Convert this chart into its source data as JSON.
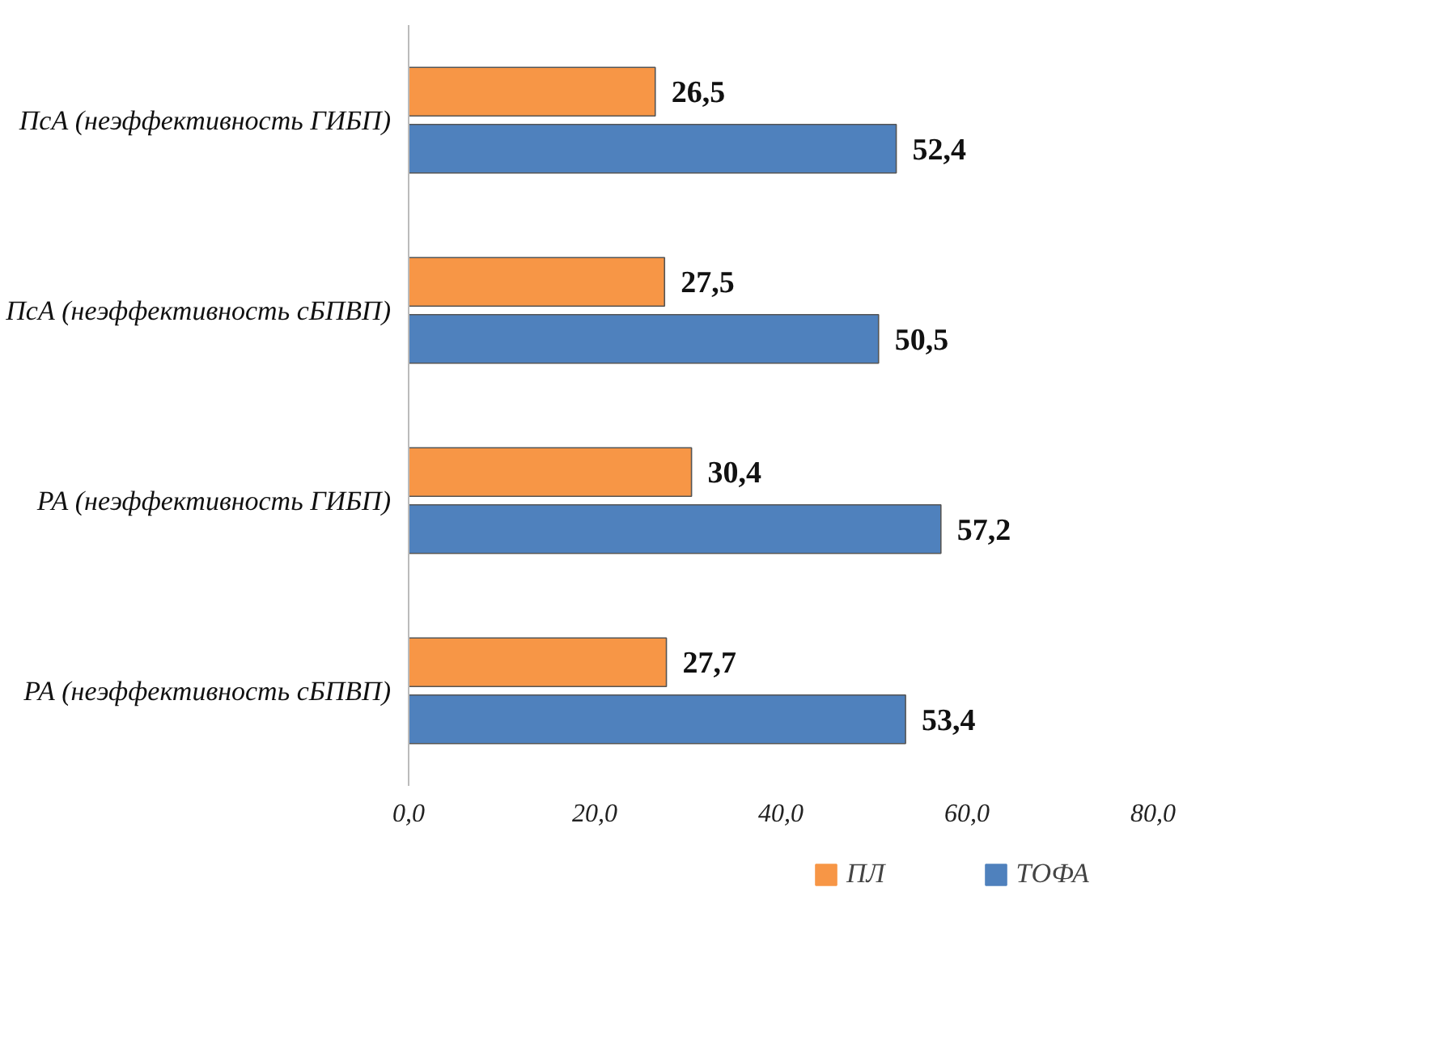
{
  "chart_data": {
    "type": "bar",
    "orientation": "horizontal",
    "categories": [
      "ПсА (неэффективность ГИБП)",
      "ПсА (неэффективность сБПВП)",
      "РА (неэффективность ГИБП)",
      "РА (неэффективность сБПВП)"
    ],
    "series": [
      {
        "name": "ПЛ",
        "color": "#f79646",
        "values": [
          26.5,
          27.5,
          30.4,
          27.7
        ],
        "value_labels": [
          "26,5",
          "27,5",
          "30,4",
          "27,7"
        ]
      },
      {
        "name": "ТОФА",
        "color": "#4f81bd",
        "values": [
          52.4,
          50.5,
          57.2,
          53.4
        ],
        "value_labels": [
          "52,4",
          "50,5",
          "57,2",
          "53,4"
        ]
      }
    ],
    "xlim": [
      0,
      80
    ],
    "xticks": [
      {
        "value": 0,
        "label": "0,0"
      },
      {
        "value": 20,
        "label": "20,0"
      },
      {
        "value": 40,
        "label": "40,0"
      },
      {
        "value": 60,
        "label": "60,0"
      },
      {
        "value": 80,
        "label": "80,0"
      }
    ],
    "grid": false,
    "legend": "bottom"
  }
}
